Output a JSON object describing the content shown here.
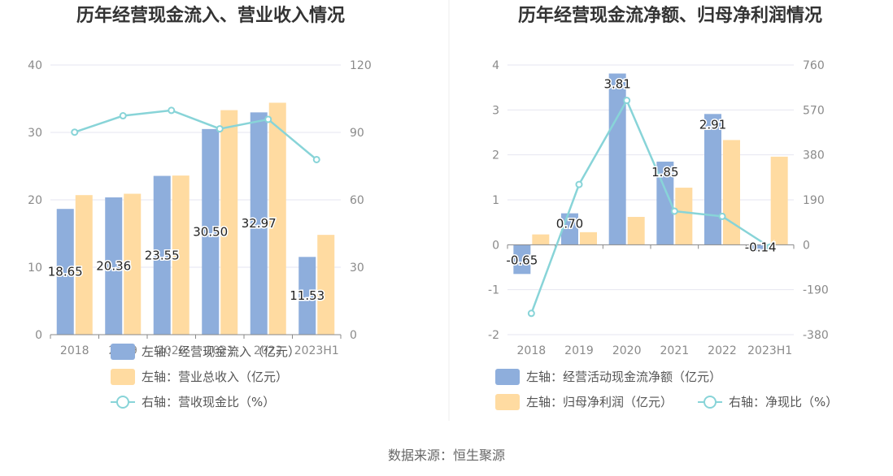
{
  "source_text": "数据来源：恒生聚源",
  "colors": {
    "bar1": "#8eaedc",
    "bar2": "#ffdba1",
    "line": "#88d4d8",
    "grid": "#e6e6f0",
    "axis": "#8a8a8a"
  },
  "chart_data": [
    {
      "type": "bar",
      "title": "历年经营现金流入、营业收入情况",
      "categories": [
        "2018",
        "2019",
        "2020",
        "2021",
        "2022",
        "2023H1"
      ],
      "y_left": {
        "ticks": [
          0,
          10,
          20,
          30,
          40
        ],
        "ylim": [
          0,
          40
        ]
      },
      "y_right": {
        "ticks": [
          0,
          30,
          60,
          90,
          120
        ],
        "ylim": [
          0,
          120
        ]
      },
      "series": [
        {
          "name": "左轴：经营现金流入（亿元）",
          "type": "bar",
          "axis": "left",
          "values": [
            18.65,
            20.36,
            23.55,
            30.5,
            32.97,
            11.53
          ],
          "labels": [
            "18.65",
            "20.36",
            "23.55",
            "30.50",
            "32.97",
            "11.53"
          ]
        },
        {
          "name": "左轴：营业总收入（亿元）",
          "type": "bar",
          "axis": "left",
          "values": [
            20.7,
            20.9,
            23.6,
            33.3,
            34.4,
            14.8
          ]
        },
        {
          "name": "右轴：营收现金比（%）",
          "type": "line",
          "axis": "right",
          "values": [
            90.1,
            97.4,
            99.8,
            91.6,
            95.8,
            77.9
          ]
        }
      ],
      "legend_position": "bottom",
      "grid": true
    },
    {
      "type": "bar",
      "title": "历年经营现金流净额、归母净利润情况",
      "categories": [
        "2018",
        "2019",
        "2020",
        "2021",
        "2022",
        "2023H1"
      ],
      "y_left": {
        "ticks": [
          -2,
          -1,
          0,
          1,
          2,
          3,
          4
        ],
        "ylim": [
          -2,
          4
        ]
      },
      "y_right": {
        "ticks": [
          -380,
          -190,
          0,
          190,
          380,
          570,
          760
        ],
        "ylim": [
          -380,
          760
        ]
      },
      "series": [
        {
          "name": "左轴：经营活动现金流净额（亿元）",
          "type": "bar",
          "axis": "left",
          "values": [
            -0.65,
            0.7,
            3.81,
            1.85,
            2.91,
            -0.14
          ],
          "labels": [
            "-0.65",
            "0.70",
            "3.81",
            "1.85",
            "2.91",
            "-0.14"
          ]
        },
        {
          "name": "左轴：归母净利润（亿元）",
          "type": "bar",
          "axis": "left",
          "values": [
            0.23,
            0.28,
            0.62,
            1.27,
            2.33,
            1.96
          ]
        },
        {
          "name": "右轴：净现比（%）",
          "type": "line",
          "axis": "right",
          "values": [
            -290,
            255,
            610,
            142,
            120,
            -10
          ]
        }
      ],
      "legend_position": "bottom",
      "grid": true
    }
  ]
}
